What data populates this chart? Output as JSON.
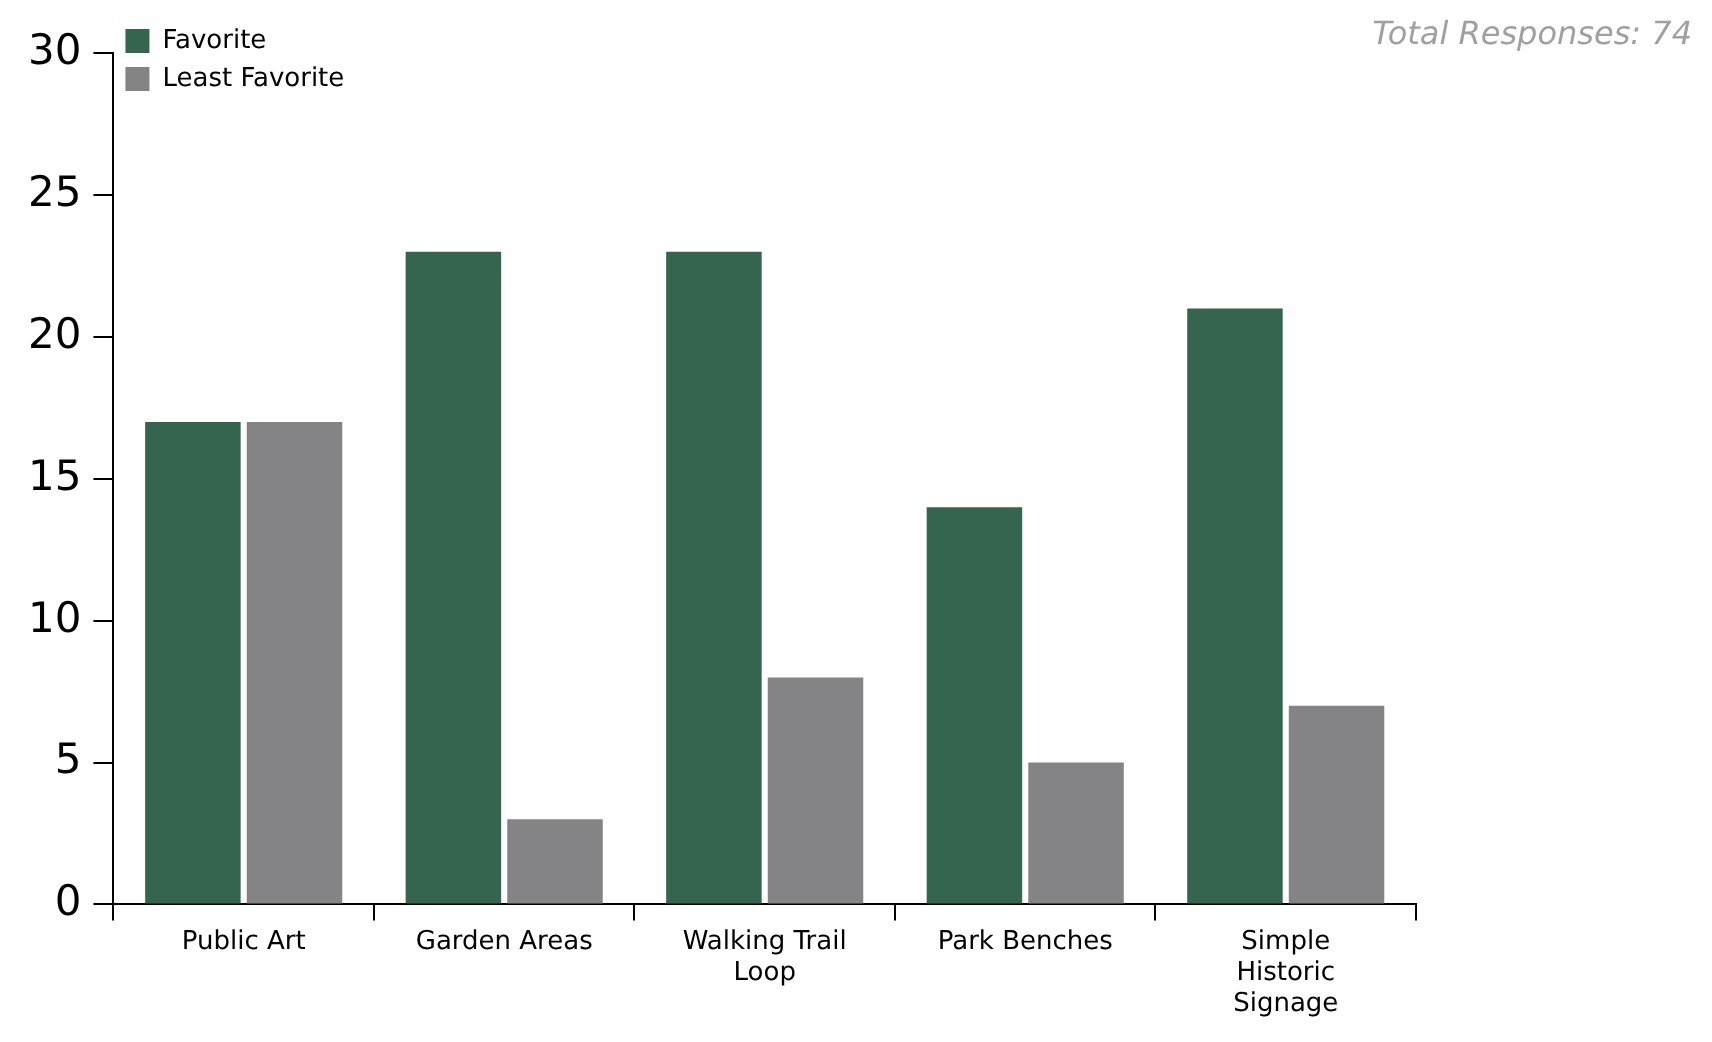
{
  "chart_data": {
    "type": "bar",
    "categories": [
      "Public Art",
      "Garden Areas",
      "Walking Trail Loop",
      "Park Benches",
      "Simple Historic Signage"
    ],
    "series": [
      {
        "name": "Favorite",
        "color": "#36654f",
        "values": [
          17,
          23,
          23,
          14,
          21
        ]
      },
      {
        "name": "Least Favorite",
        "color": "#848486",
        "values": [
          17,
          3,
          8,
          5,
          7
        ]
      }
    ],
    "ylim": [
      0,
      30
    ],
    "yticks": [
      0,
      5,
      10,
      15,
      20,
      25,
      30
    ],
    "grid": false,
    "legend": "top left",
    "annotations": [
      "Total Responses: 74"
    ]
  }
}
